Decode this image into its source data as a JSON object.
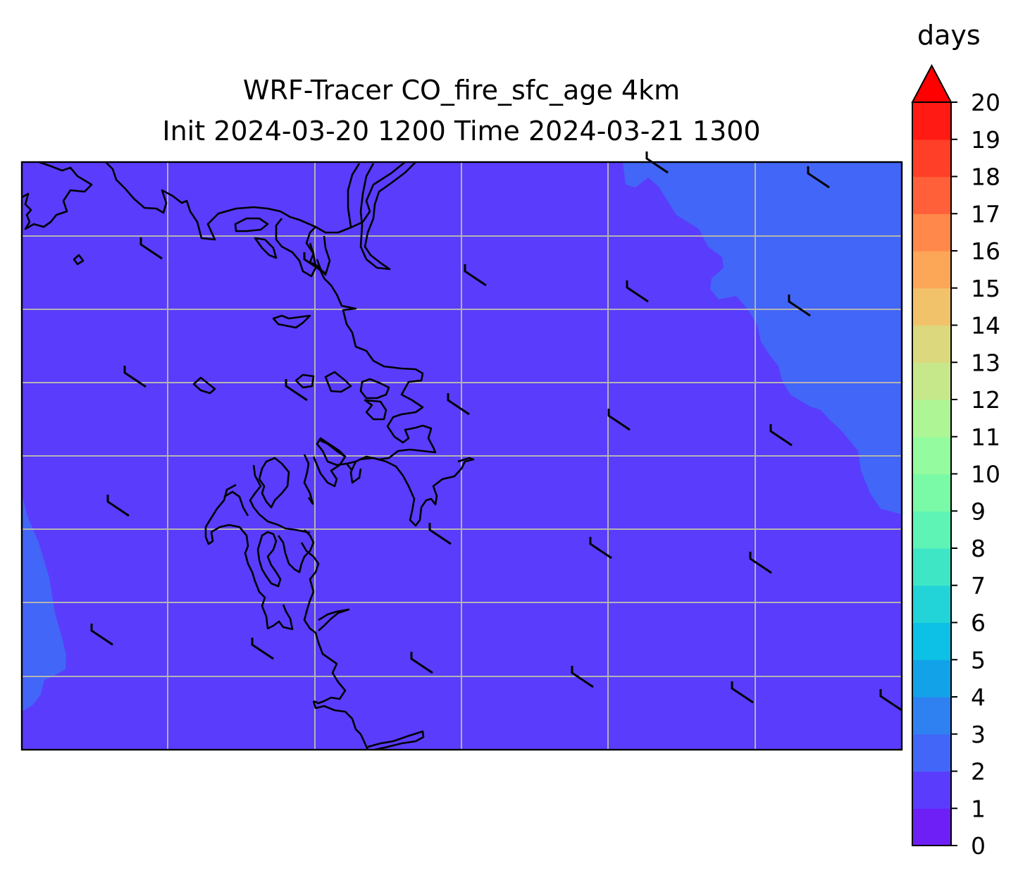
{
  "title_line1": "WRF-Tracer CO_fire_sfc_age 4km",
  "title_line2": "Init 2024-03-20 1200 Time 2024-03-21 1300",
  "colorbar": {
    "label": "days",
    "ticks": [
      "0",
      "1",
      "2",
      "3",
      "4",
      "5",
      "6",
      "7",
      "8",
      "9",
      "10",
      "11",
      "12",
      "13",
      "14",
      "15",
      "16",
      "17",
      "18",
      "19",
      "20"
    ],
    "colors": [
      "#6e1ff5",
      "#5a3cfc",
      "#4266f7",
      "#2f80f0",
      "#12a2e8",
      "#0cc0e6",
      "#22d3d8",
      "#3ee6c6",
      "#5ef4b6",
      "#7afaa6",
      "#94fb9e",
      "#aef695",
      "#c6e88a",
      "#dbd87e",
      "#f1c26a",
      "#fca658",
      "#ff884a",
      "#ff603a",
      "#ff3f28",
      "#ff1a14"
    ],
    "extend_color": "#ff0000"
  },
  "map": {
    "field_levels": [
      {
        "range": "1-2",
        "color": "#5a3cfc"
      },
      {
        "range": "2-3",
        "color": "#4266f7"
      }
    ],
    "gridlines": true,
    "coastline_color": "#000000",
    "barb_color": "#000000"
  }
}
